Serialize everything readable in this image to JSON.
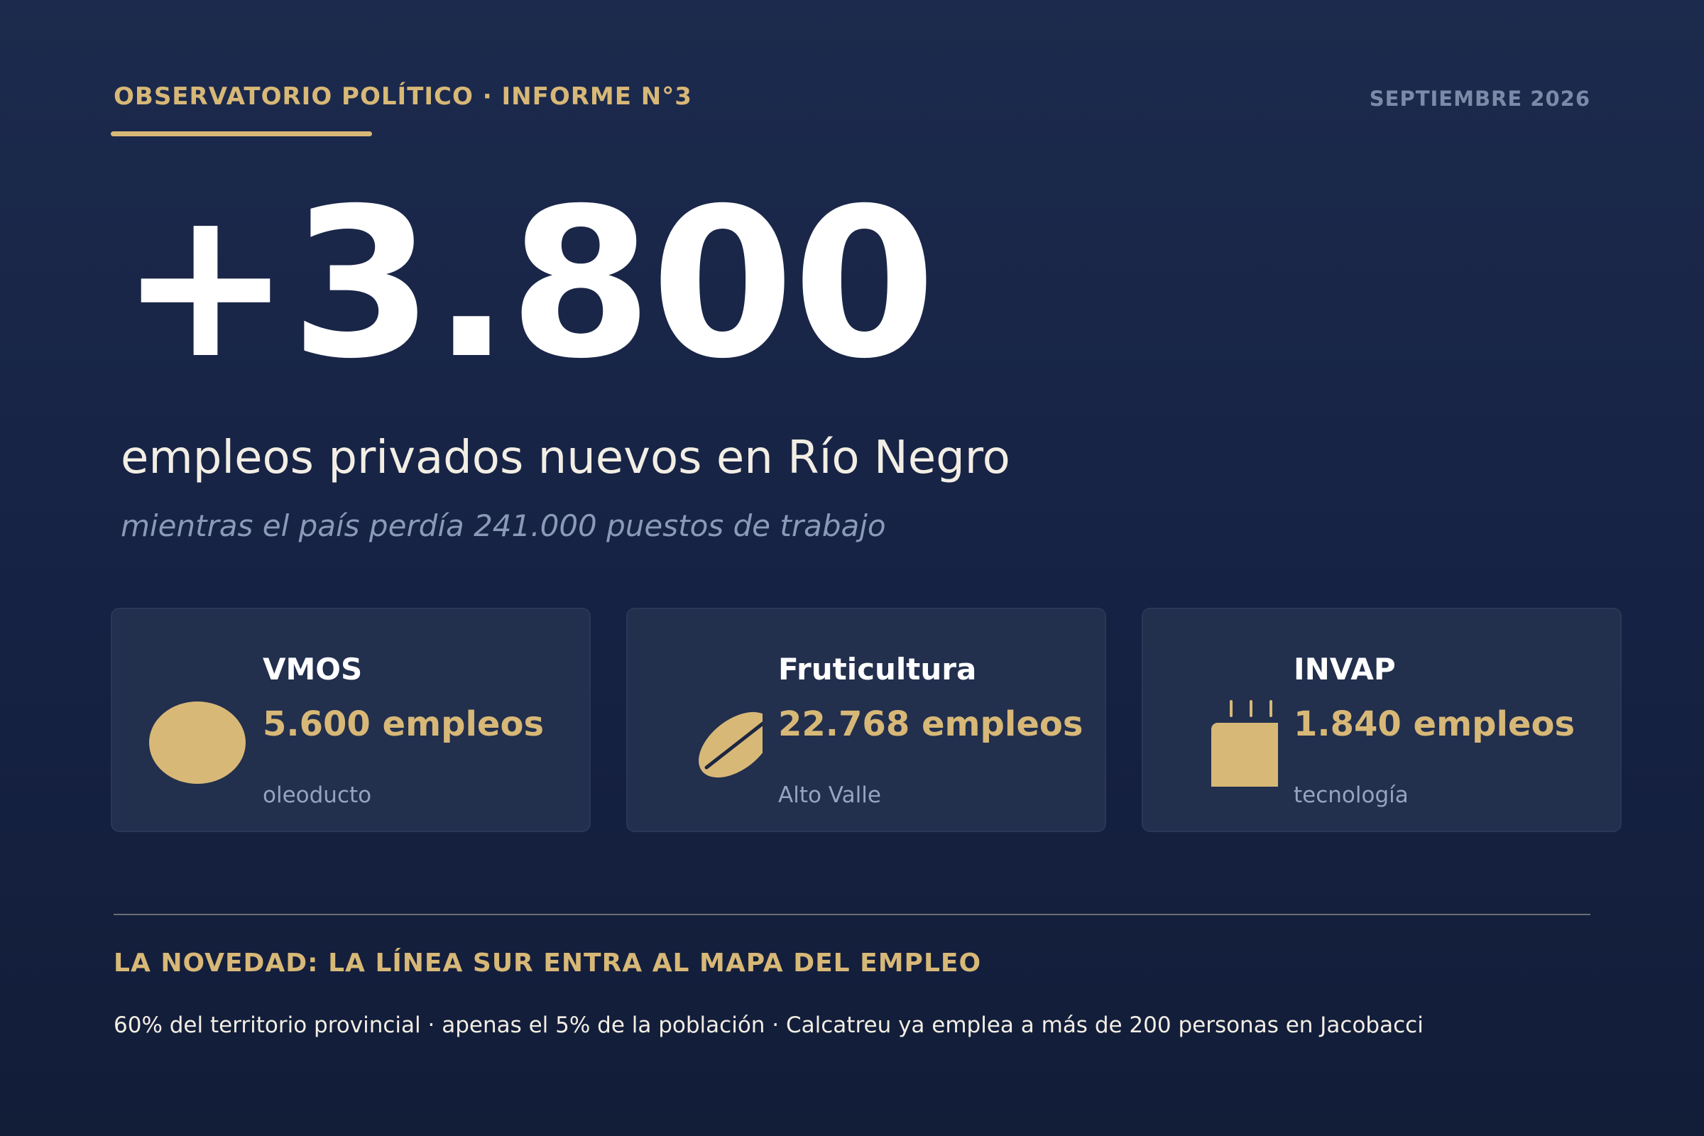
{
  "header": {
    "kicker": "OBSERVATORIO POLÍTICO · INFORME N°3",
    "date": "SEPTIEMBRE 2026"
  },
  "hero": {
    "number": "+3.800",
    "headline": "empleos privados nuevos en Río Negro",
    "subline": "mientras el país perdía 241.000 puestos de trabajo"
  },
  "cards": [
    {
      "title": "VMOS",
      "value": "5.600 empleos",
      "sub": "oleoducto",
      "icon": "oil-drop-icon"
    },
    {
      "title": "Fruticultura",
      "value": "22.768 empleos",
      "sub": "Alto Valle",
      "icon": "fruit-leaf-icon"
    },
    {
      "title": "INVAP",
      "value": "1.840 empleos",
      "sub": "tecnología",
      "icon": "microchip-icon"
    }
  ],
  "novedad": {
    "title": "LA NOVEDAD: LA LÍNEA SUR ENTRA AL MAPA DEL EMPLEO",
    "text": "60% del territorio provincial · apenas el 5% de la población · Calcatreu ya emplea a más de 200 personas en Jacobacci"
  },
  "colors": {
    "accent": "#d8b877",
    "background": "#1a2748",
    "card": "#222f4d",
    "muted": "#8c9ab9"
  }
}
